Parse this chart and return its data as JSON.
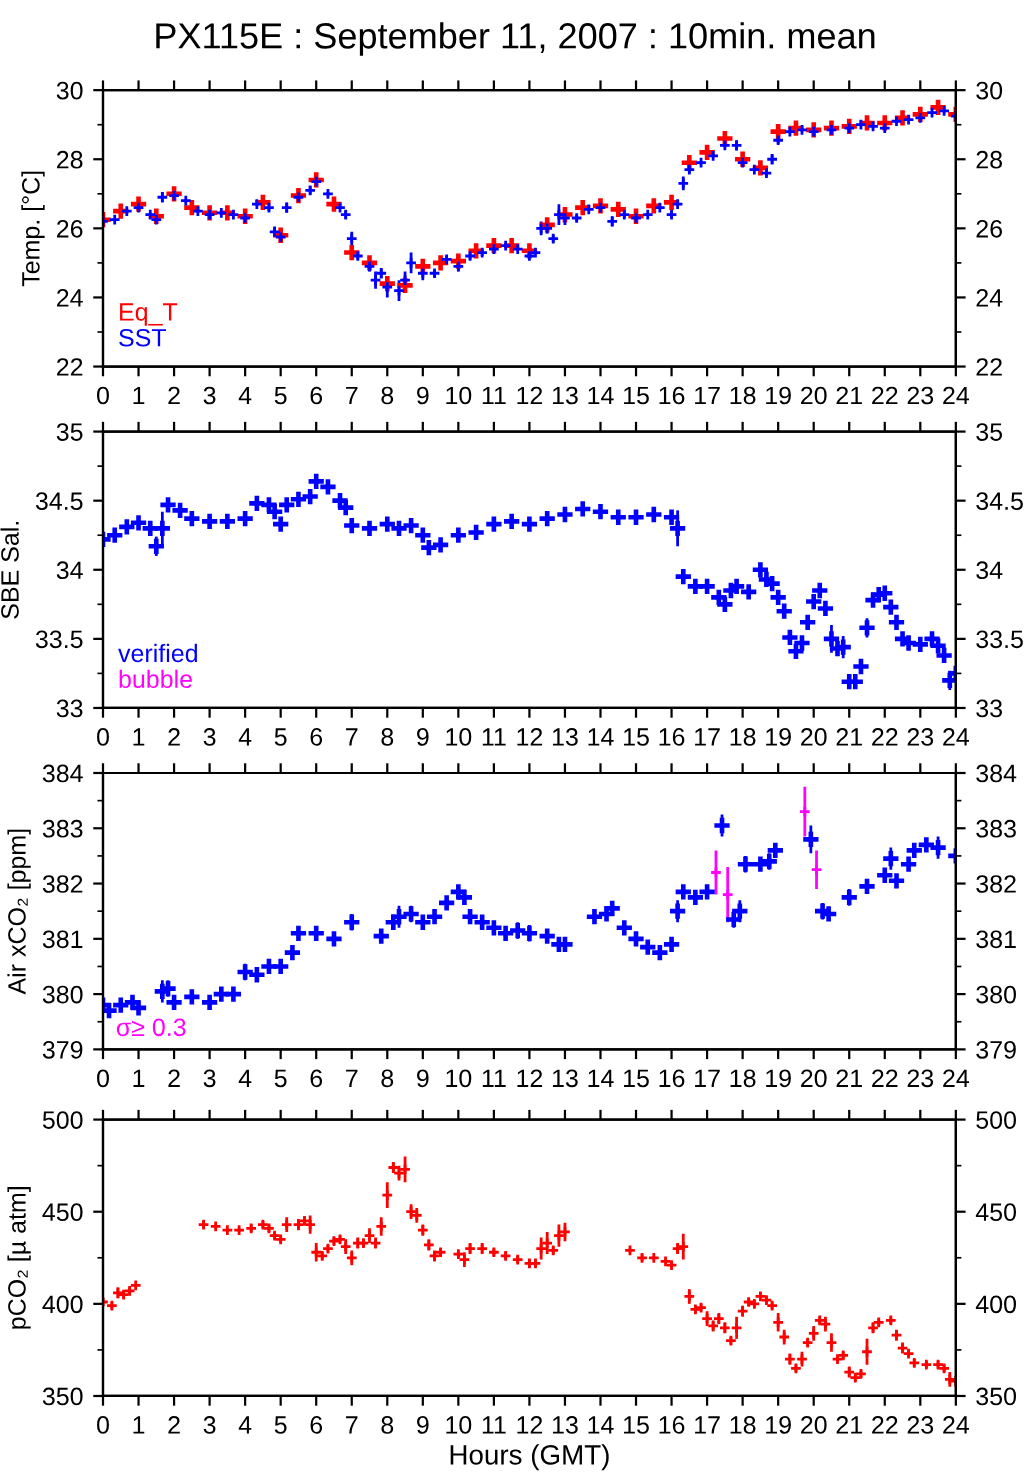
{
  "chart_data": [
    {
      "type": "scatter",
      "title": "PX115E : September 11, 2007 : 10min. mean",
      "ylabel": "Temp. [°C]",
      "marker": "cross",
      "legend": "bottom left",
      "xlim": [
        0,
        24
      ],
      "xticks": [
        0,
        1,
        2,
        3,
        4,
        5,
        6,
        7,
        8,
        9,
        10,
        11,
        12,
        13,
        14,
        15,
        16,
        17,
        18,
        19,
        20,
        21,
        22,
        23,
        24
      ],
      "ylim": [
        22,
        30
      ],
      "yticks": [
        22,
        {
          "value": 23,
          "label": null
        },
        24,
        {
          "value": 25,
          "label": null
        },
        26,
        {
          "value": 27,
          "label": null
        },
        28,
        {
          "value": 29,
          "label": null
        },
        30
      ],
      "y2lim": [
        22,
        30
      ],
      "y2ticks": [
        22,
        {
          "value": 23,
          "label": null
        },
        24,
        {
          "value": 25,
          "label": null
        },
        26,
        {
          "value": 27,
          "label": null
        },
        28,
        {
          "value": 29,
          "label": null
        },
        30
      ],
      "series": [
        {
          "name": "Eq_T",
          "color": "#ff0000",
          "x": [
            0,
            0.5,
            1,
            1.5,
            2,
            2.5,
            3,
            3.5,
            4,
            4.5,
            5,
            5.5,
            6,
            6.5,
            7,
            7.5,
            8,
            8.5,
            9,
            9.5,
            10,
            10.5,
            11,
            11.5,
            12,
            12.5,
            13,
            13.5,
            14,
            14.5,
            15,
            15.5,
            16,
            16.5,
            17,
            17.5,
            18,
            18.5,
            19,
            19.5,
            20,
            20.5,
            21,
            21.5,
            22,
            22.5,
            23,
            23.5,
            24
          ],
          "values": [
            26.25,
            26.5,
            26.7,
            26.35,
            27.0,
            26.6,
            26.45,
            26.45,
            26.35,
            26.75,
            25.8,
            26.95,
            27.4,
            26.7,
            25.3,
            25.0,
            24.4,
            24.35,
            24.9,
            25.0,
            25.05,
            25.35,
            25.5,
            25.5,
            25.35,
            26.1,
            26.4,
            26.6,
            26.65,
            26.55,
            26.35,
            26.65,
            26.75,
            27.9,
            28.2,
            28.6,
            28.0,
            27.75,
            28.8,
            28.9,
            28.85,
            28.9,
            28.95,
            29.05,
            29.05,
            29.2,
            29.3,
            29.5,
            29.3
          ]
        },
        {
          "name": "SST",
          "color": "#0000ff",
          "x": [
            0,
            0.33,
            0.67,
            1,
            1.33,
            1.5,
            1.67,
            2,
            2.33,
            2.67,
            3,
            3.33,
            3.67,
            4,
            4.33,
            4.67,
            4.83,
            5,
            5.17,
            5.5,
            5.83,
            6,
            6.33,
            6.67,
            6.83,
            7,
            7.17,
            7.5,
            7.67,
            7.83,
            8,
            8.33,
            8.5,
            8.67,
            9,
            9.33,
            9.67,
            10,
            10.33,
            10.67,
            11,
            11.33,
            11.67,
            12,
            12.17,
            12.33,
            12.5,
            12.67,
            12.83,
            13,
            13.33,
            13.67,
            14,
            14.33,
            14.67,
            15,
            15.33,
            15.67,
            16,
            16.17,
            16.33,
            16.5,
            16.83,
            17.17,
            17.5,
            17.83,
            18,
            18.33,
            18.67,
            18.83,
            19,
            19.33,
            19.67,
            20,
            20.5,
            21,
            21.33,
            21.67,
            22,
            22.33,
            22.67,
            23,
            23.33,
            23.67,
            24
          ],
          "values": [
            26.2,
            26.25,
            26.5,
            26.6,
            26.4,
            26.25,
            26.9,
            26.95,
            26.8,
            26.5,
            26.4,
            26.45,
            26.4,
            26.3,
            26.7,
            26.6,
            25.9,
            25.75,
            26.6,
            26.9,
            27.1,
            27.35,
            27.0,
            26.6,
            26.4,
            25.7,
            25.2,
            24.9,
            24.5,
            24.7,
            24.3,
            24.2,
            24.5,
            25.0,
            24.7,
            24.7,
            25.1,
            24.9,
            25.2,
            25.3,
            25.4,
            25.5,
            25.4,
            25.2,
            25.3,
            26.0,
            26.0,
            25.7,
            26.4,
            26.3,
            26.3,
            26.55,
            26.6,
            26.2,
            26.4,
            26.3,
            26.4,
            26.6,
            26.4,
            26.7,
            27.3,
            27.7,
            27.9,
            28.1,
            28.4,
            28.4,
            27.9,
            27.7,
            27.6,
            28.0,
            28.55,
            28.8,
            28.85,
            28.8,
            28.85,
            28.9,
            29.0,
            28.95,
            28.9,
            29.1,
            29.15,
            29.2,
            29.35,
            29.4,
            29.25
          ],
          "errors": [
            0.05,
            0.05,
            0.05,
            0.05,
            0.05,
            0.1,
            0.15,
            0.05,
            0.05,
            0.05,
            0.05,
            0.05,
            0.05,
            0.05,
            0.05,
            0.1,
            0.15,
            0.15,
            0.15,
            0.05,
            0.12,
            0.05,
            0.05,
            0.05,
            0.12,
            0.2,
            0.1,
            0.15,
            0.25,
            0.15,
            0.3,
            0.3,
            0.25,
            0.3,
            0.2,
            0.1,
            0.1,
            0.15,
            0.1,
            0.1,
            0.05,
            0.05,
            0.05,
            0.05,
            0.05,
            0.2,
            0.15,
            0.1,
            0.3,
            0.2,
            0.1,
            0.05,
            0.05,
            0.15,
            0.1,
            0.05,
            0.05,
            0.05,
            0.1,
            0.05,
            0.2,
            0.1,
            0.05,
            0.05,
            0.05,
            0.15,
            0.1,
            0.05,
            0.1,
            0.15,
            0.1,
            0.05,
            0.05,
            0.05,
            0.05,
            0.05,
            0.05,
            0.05,
            0.05,
            0.05,
            0.05,
            0.05,
            0.05,
            0.05,
            0.05
          ]
        }
      ]
    },
    {
      "type": "scatter",
      "ylabel": "SBE Sal.",
      "marker": "cross",
      "legend": "bottom left",
      "xlim": [
        0,
        24
      ],
      "xticks": [
        0,
        1,
        2,
        3,
        4,
        5,
        6,
        7,
        8,
        9,
        10,
        11,
        12,
        13,
        14,
        15,
        16,
        17,
        18,
        19,
        20,
        21,
        22,
        23,
        24
      ],
      "ylim": [
        33,
        35
      ],
      "yticks": [
        33,
        {
          "value": 33.25,
          "label": null
        },
        33.5,
        {
          "value": 33.75,
          "label": null
        },
        34,
        {
          "value": 34.25,
          "label": null
        },
        34.5,
        {
          "value": 34.75,
          "label": null
        },
        35
      ],
      "y2lim": [
        33,
        35
      ],
      "y2ticks": [
        33,
        {
          "value": 33.25,
          "label": null
        },
        33.5,
        {
          "value": 33.75,
          "label": null
        },
        34,
        {
          "value": 34.25,
          "label": null
        },
        34.5,
        {
          "value": 34.75,
          "label": null
        },
        35
      ],
      "series": [
        {
          "name": "verified",
          "color": "#0000ff",
          "x": [
            0,
            0.33,
            0.67,
            1,
            1.33,
            1.5,
            1.67,
            1.83,
            2.17,
            2.5,
            3,
            3.5,
            4,
            4.33,
            4.67,
            4.83,
            5,
            5.17,
            5.5,
            5.83,
            6,
            6.33,
            6.67,
            6.83,
            7,
            7.5,
            8,
            8.33,
            8.67,
            9,
            9.17,
            9.5,
            10,
            10.5,
            11,
            11.5,
            12,
            12.5,
            13,
            13.5,
            14,
            14.5,
            15,
            15.5,
            16,
            16.17,
            16.33,
            16.67,
            17,
            17.33,
            17.5,
            17.67,
            17.83,
            18.17,
            18.5,
            18.67,
            18.83,
            19,
            19.17,
            19.33,
            19.5,
            19.67,
            19.83,
            20,
            20.17,
            20.33,
            20.5,
            20.67,
            20.83,
            21,
            21.17,
            21.33,
            21.5,
            21.67,
            21.83,
            22,
            22.17,
            22.33,
            22.5,
            22.67,
            23,
            23.33,
            23.5,
            23.67,
            23.83,
            24
          ],
          "values": [
            34.22,
            34.25,
            34.31,
            34.34,
            34.3,
            34.17,
            34.3,
            34.47,
            34.43,
            34.37,
            34.35,
            34.35,
            34.37,
            34.48,
            34.47,
            34.42,
            34.33,
            34.47,
            34.51,
            34.53,
            34.64,
            34.6,
            34.5,
            34.45,
            34.32,
            34.3,
            34.33,
            34.3,
            34.32,
            34.25,
            34.16,
            34.18,
            34.25,
            34.27,
            34.33,
            34.35,
            34.33,
            34.37,
            34.4,
            34.44,
            34.42,
            34.38,
            34.38,
            34.4,
            34.38,
            34.3,
            33.95,
            33.88,
            33.88,
            33.8,
            33.75,
            33.85,
            33.88,
            33.84,
            34.0,
            33.93,
            33.9,
            33.8,
            33.7,
            33.51,
            33.41,
            33.47,
            33.62,
            33.77,
            33.85,
            33.72,
            33.5,
            33.43,
            33.44,
            33.19,
            33.19,
            33.3,
            33.58,
            33.78,
            33.82,
            33.83,
            33.73,
            33.62,
            33.5,
            33.47,
            33.46,
            33.5,
            33.45,
            33.38,
            33.2,
            33.25
          ],
          "errors": [
            0.02,
            0.02,
            0.02,
            0.02,
            0.02,
            0.07,
            0.12,
            0.02,
            0.02,
            0.02,
            0.02,
            0.02,
            0.02,
            0.04,
            0.03,
            0.05,
            0.02,
            0.02,
            0.03,
            0.05,
            0.02,
            0.02,
            0.02,
            0.05,
            0.02,
            0.02,
            0.05,
            0.04,
            0.05,
            0.03,
            0.02,
            0.02,
            0.02,
            0.02,
            0.02,
            0.02,
            0.02,
            0.05,
            0.02,
            0.02,
            0.02,
            0.02,
            0.02,
            0.02,
            0.02,
            0.13,
            0.05,
            0.02,
            0.02,
            0.02,
            0.02,
            0.03,
            0.02,
            0.02,
            0.03,
            0.03,
            0.02,
            0.03,
            0.05,
            0.04,
            0.03,
            0.05,
            0.03,
            0.05,
            0.02,
            0.05,
            0.1,
            0.05,
            0.08,
            0.03,
            0.03,
            0.04,
            0.07,
            0.05,
            0.03,
            0.02,
            0.05,
            0.05,
            0.03,
            0.02,
            0.02,
            0.02,
            0.02,
            0.02,
            0.07,
            0.05
          ]
        },
        {
          "name": "bubble",
          "color": "#ff00ff"
        }
      ]
    },
    {
      "type": "scatter",
      "ylabel": "Air xCO₂ [ppm]",
      "marker": "cross",
      "annotations": [
        "σ≥ 0.3"
      ],
      "xlim": [
        0,
        24
      ],
      "xticks": [
        0,
        1,
        2,
        3,
        4,
        5,
        6,
        7,
        8,
        9,
        10,
        11,
        12,
        13,
        14,
        15,
        16,
        17,
        18,
        19,
        20,
        21,
        22,
        23,
        24
      ],
      "ylim": [
        379,
        384
      ],
      "yticks": [
        379,
        {
          "value": 379.5,
          "label": null
        },
        380,
        {
          "value": 380.5,
          "label": null
        },
        381,
        {
          "value": 381.5,
          "label": null
        },
        382,
        {
          "value": 382.5,
          "label": null
        },
        383,
        {
          "value": 383.5,
          "label": null
        },
        384
      ],
      "y2lim": [
        379,
        384
      ],
      "y2ticks": [
        379,
        {
          "value": 379.5,
          "label": null
        },
        380,
        {
          "value": 380.5,
          "label": null
        },
        381,
        {
          "value": 381.5,
          "label": null
        },
        382,
        {
          "value": 382.5,
          "label": null
        },
        383,
        {
          "value": 383.5,
          "label": null
        },
        384
      ],
      "series": [
        {
          "color": "#0000ff",
          "x": [
            0,
            0.17,
            0.5,
            0.83,
            1,
            1.67,
            1.83,
            2,
            2.5,
            3,
            3.33,
            3.67,
            4,
            4.33,
            4.67,
            5,
            5.33,
            5.5,
            6,
            6.5,
            7,
            7.33,
            7.83,
            8.17,
            8.33,
            8.67,
            9,
            9.33,
            9.67,
            10,
            10.17,
            10.33,
            10.67,
            11,
            11.33,
            11.67,
            12,
            12.5,
            12.83,
            13,
            13.33,
            13.83,
            14.17,
            14.33,
            14.67,
            15,
            15.33,
            15.67,
            16,
            16.17,
            16.33,
            16.67,
            17,
            17.42,
            17.75,
            17.92,
            18.08,
            18.5,
            18.75,
            18.92,
            19.33,
            19.92,
            20.25,
            20.42,
            21,
            21.5,
            22,
            22.17,
            22.33,
            22.67,
            22.83,
            23.17,
            23.5,
            24
          ],
          "values": [
            379.8,
            379.7,
            379.8,
            379.85,
            379.75,
            380.05,
            380.1,
            379.85,
            379.95,
            379.85,
            380.0,
            380.0,
            380.4,
            380.35,
            380.5,
            380.5,
            380.75,
            381.1,
            381.1,
            381.0,
            381.3,
            null,
            381.05,
            381.3,
            381.4,
            381.45,
            381.3,
            381.4,
            381.65,
            381.85,
            381.75,
            381.4,
            381.3,
            381.2,
            381.1,
            381.15,
            381.1,
            381.05,
            380.9,
            380.9,
            null,
            381.4,
            381.45,
            381.55,
            381.2,
            381.0,
            380.85,
            380.75,
            380.9,
            381.5,
            381.85,
            381.75,
            381.85,
            383.05,
            381.35,
            381.5,
            382.35,
            382.35,
            382.4,
            382.6,
            null,
            382.8,
            381.5,
            381.45,
            381.75,
            381.95,
            382.15,
            382.45,
            382.05,
            382.35,
            382.6,
            382.7,
            382.65,
            382.5
          ],
          "errors": [
            0.1,
            0.05,
            0.05,
            0.1,
            0.05,
            0.2,
            0.15,
            0.1,
            0.05,
            0.05,
            0.05,
            0.1,
            0.15,
            0.1,
            0.1,
            0.1,
            0.1,
            0.05,
            0.05,
            0.05,
            0.15,
            null,
            0.05,
            0.1,
            0.2,
            0.15,
            0.05,
            0.1,
            0.1,
            0.1,
            0.1,
            0.1,
            0.05,
            0.1,
            0.1,
            0.15,
            0.15,
            0.05,
            0.05,
            0.05,
            null,
            0.1,
            0.1,
            0.1,
            0.05,
            0.05,
            0.05,
            0.05,
            0.05,
            0.2,
            0.1,
            0.1,
            0.1,
            0.2,
            0.15,
            0.2,
            0.15,
            0.1,
            0.15,
            0.1,
            null,
            0.25,
            0.15,
            0.1,
            0.15,
            0.1,
            0.1,
            0.2,
            0.1,
            0.1,
            0.1,
            0.1,
            0.2,
            0.1
          ]
        },
        {
          "color": "#ff00ff",
          "x": [
            17.25,
            17.58,
            19.75,
            20.08
          ],
          "values": [
            382.2,
            381.8,
            383.3,
            382.25
          ],
          "errors": [
            0.4,
            0.5,
            0.45,
            0.35
          ]
        }
      ]
    },
    {
      "type": "scatter",
      "ylabel": "pCO₂ [µ atm]",
      "xlabel": "Hours (GMT)",
      "marker": "cross",
      "xlim": [
        0,
        24
      ],
      "xticks": [
        0,
        1,
        2,
        3,
        4,
        5,
        6,
        7,
        8,
        9,
        10,
        11,
        12,
        13,
        14,
        15,
        16,
        17,
        18,
        19,
        20,
        21,
        22,
        23,
        24
      ],
      "ylim": [
        350,
        500
      ],
      "yticks": [
        350,
        {
          "value": 375,
          "label": null
        },
        400,
        {
          "value": 425,
          "label": null
        },
        450,
        {
          "value": 475,
          "label": null
        },
        500
      ],
      "y2lim": [
        350,
        500
      ],
      "y2ticks": [
        350,
        {
          "value": 375,
          "label": null
        },
        400,
        {
          "value": 425,
          "label": null
        },
        450,
        {
          "value": 475,
          "label": null
        },
        500
      ],
      "series": [
        {
          "color": "#ff0000",
          "x": [
            0,
            0.25,
            0.42,
            0.58,
            0.75,
            0.92,
            1.08,
            2.83,
            3.17,
            3.5,
            3.83,
            4.17,
            4.5,
            4.67,
            4.83,
            5,
            5.17,
            5.5,
            5.67,
            5.83,
            6,
            6.17,
            6.33,
            6.5,
            6.67,
            6.83,
            7,
            7.17,
            7.33,
            7.5,
            7.67,
            7.83,
            8,
            8.17,
            8.33,
            8.5,
            8.67,
            8.83,
            9,
            9.17,
            9.33,
            9.5,
            10,
            10.17,
            10.33,
            10.67,
            11,
            11.33,
            11.67,
            12,
            12.17,
            12.33,
            12.5,
            12.67,
            12.83,
            13,
            13.17,
            14.83,
            15.17,
            15.5,
            15.83,
            16,
            16.17,
            16.33,
            16.5,
            16.67,
            16.83,
            17,
            17.17,
            17.33,
            17.5,
            17.67,
            17.83,
            18,
            18.17,
            18.33,
            18.5,
            18.67,
            18.83,
            19,
            19.17,
            19.33,
            19.5,
            19.67,
            19.83,
            20,
            20.17,
            20.33,
            20.5,
            20.67,
            20.83,
            21,
            21.17,
            21.33,
            21.5,
            21.67,
            21.83,
            22.17,
            22.33,
            22.5,
            22.67,
            22.83,
            23.17,
            23.5,
            23.67,
            23.83,
            24
          ],
          "values": [
            401,
            399,
            406,
            405,
            407,
            410,
            null,
            443,
            442,
            440,
            440,
            441,
            443,
            441,
            437,
            435,
            443,
            443,
            445,
            443,
            428,
            426,
            430,
            434,
            435,
            431,
            425,
            433,
            433,
            437,
            433,
            442,
            459,
            474,
            471,
            473,
            450,
            448,
            440,
            432,
            426,
            428,
            427,
            424,
            430,
            430,
            428,
            426,
            424,
            422,
            422,
            430,
            433,
            429,
            437,
            439,
            null,
            429,
            425,
            425,
            423,
            421,
            430,
            431,
            404,
            397,
            398,
            392,
            388,
            392,
            387,
            380,
            387,
            396,
            401,
            400,
            404,
            402,
            399,
            390,
            382,
            370,
            365,
            370,
            379,
            384,
            391,
            389,
            379,
            370,
            372,
            363,
            360,
            362,
            374,
            387,
            390,
            391,
            383,
            376,
            373,
            368,
            367,
            367,
            365,
            359,
            358
          ],
          "errors": [
            2,
            2,
            3,
            2,
            2,
            1,
            null,
            2,
            1,
            1,
            1,
            2,
            2,
            2,
            2,
            2,
            4,
            3,
            2,
            5,
            5,
            2,
            2,
            2,
            2,
            4,
            4,
            3,
            2,
            4,
            3,
            5,
            7,
            3,
            4,
            7,
            4,
            4,
            3,
            3,
            3,
            2,
            2,
            4,
            3,
            3,
            2,
            2,
            2,
            2,
            2,
            6,
            6,
            2,
            6,
            5,
            null,
            1,
            2,
            1,
            1,
            2,
            3,
            7,
            4,
            2,
            2,
            4,
            3,
            3,
            3,
            2,
            6,
            3,
            2,
            2,
            2,
            2,
            2,
            5,
            4,
            3,
            2,
            4,
            2,
            4,
            2,
            4,
            5,
            2,
            2,
            3,
            2,
            2,
            7,
            3,
            2,
            2,
            3,
            3,
            2,
            2,
            2,
            2,
            2,
            4,
            3
          ]
        }
      ]
    }
  ]
}
